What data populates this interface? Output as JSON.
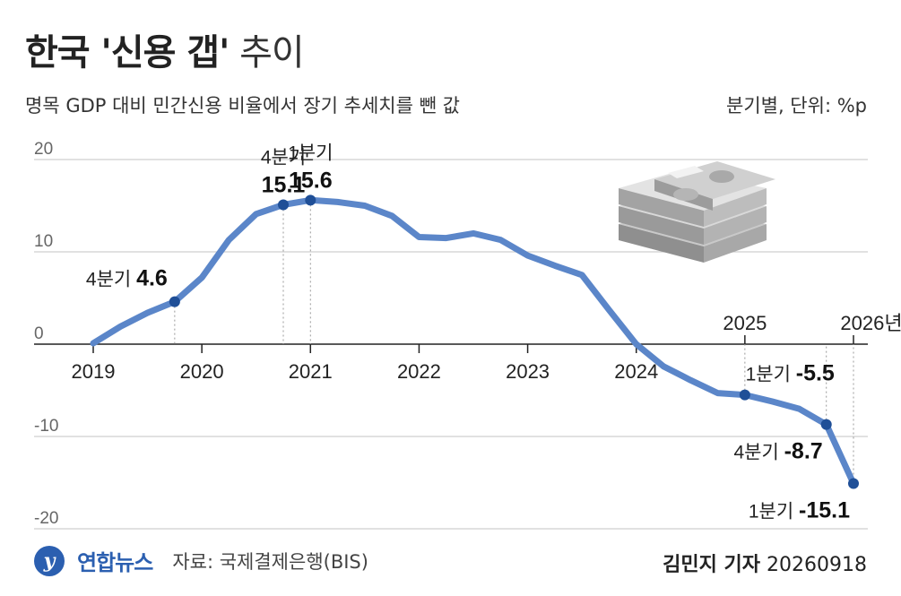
{
  "title_bold": "한국 '신용 갭'",
  "title_light": "추이",
  "subtitle": "명목 GDP 대비 민간신용 비율에서 장기 추세치를 뺀 값",
  "unit": "분기별, 단위: %p",
  "footer": {
    "logo_text": "연합뉴스",
    "source": "자료: 국제결제은행(BIS)",
    "reporter": "김민지 기자",
    "date": "20260918"
  },
  "chart_data": {
    "type": "line",
    "title": "한국 '신용 갭' 추이",
    "ylabel": "",
    "xlabel": "",
    "ylim": [
      -20,
      20
    ],
    "y_ticks": [
      "20",
      "10",
      "0",
      "-10",
      "-20"
    ],
    "y_tick_values": [
      20,
      10,
      0,
      -10,
      -20
    ],
    "x_ticks_below": [
      {
        "label": "2019",
        "x": 2019.0
      },
      {
        "label": "2020",
        "x": 2020.0
      },
      {
        "label": "2021",
        "x": 2021.0
      },
      {
        "label": "2022",
        "x": 2022.0
      },
      {
        "label": "2023",
        "x": 2023.0
      },
      {
        "label": "2024",
        "x": 2024.0
      }
    ],
    "x_ticks_above": [
      {
        "label": "2025",
        "x": 2025.0
      },
      {
        "label": "2026년",
        "x": 2026.0
      }
    ],
    "series": [
      {
        "values": [
          [
            2019.0,
            0.1
          ],
          [
            2019.25,
            1.9
          ],
          [
            2019.5,
            3.4
          ],
          [
            2019.75,
            4.6
          ],
          [
            2020.0,
            7.2
          ],
          [
            2020.25,
            11.3
          ],
          [
            2020.5,
            14.1
          ],
          [
            2020.75,
            15.1
          ],
          [
            2021.0,
            15.6
          ],
          [
            2021.25,
            15.4
          ],
          [
            2021.5,
            15.0
          ],
          [
            2021.75,
            13.9
          ],
          [
            2022.0,
            11.6
          ],
          [
            2022.25,
            11.5
          ],
          [
            2022.5,
            12.0
          ],
          [
            2022.75,
            11.3
          ],
          [
            2023.0,
            9.6
          ],
          [
            2023.25,
            8.5
          ],
          [
            2023.5,
            7.5
          ],
          [
            2023.75,
            3.7
          ],
          [
            2024.0,
            0.0
          ],
          [
            2024.25,
            -2.4
          ],
          [
            2024.5,
            -3.9
          ],
          [
            2024.75,
            -5.3
          ],
          [
            2025.0,
            -5.5
          ],
          [
            2025.25,
            -6.2
          ],
          [
            2025.5,
            -7.0
          ],
          [
            2025.75,
            -8.7
          ],
          [
            2026.0,
            -15.1
          ]
        ]
      }
    ],
    "annotations": [
      {
        "x": 2019.75,
        "y": 4.6,
        "quarter": "4분기",
        "value": "4.6",
        "layout": "inline-left"
      },
      {
        "x": 2020.75,
        "y": 15.1,
        "quarter": "4분기",
        "value": "15.1",
        "layout": "stack-above"
      },
      {
        "x": 2021.0,
        "y": 15.6,
        "quarter": "1분기",
        "value": "15.6",
        "layout": "stack-above"
      },
      {
        "x": 2025.0,
        "y": -5.5,
        "quarter": "1분기",
        "value": "-5.5",
        "layout": "inline-above"
      },
      {
        "x": 2025.75,
        "y": -8.7,
        "quarter": "4분기",
        "value": "-8.7",
        "layout": "inline-below-left"
      },
      {
        "x": 2026.0,
        "y": -15.1,
        "quarter": "1분기",
        "value": "-15.1",
        "layout": "inline-below-left"
      }
    ]
  }
}
